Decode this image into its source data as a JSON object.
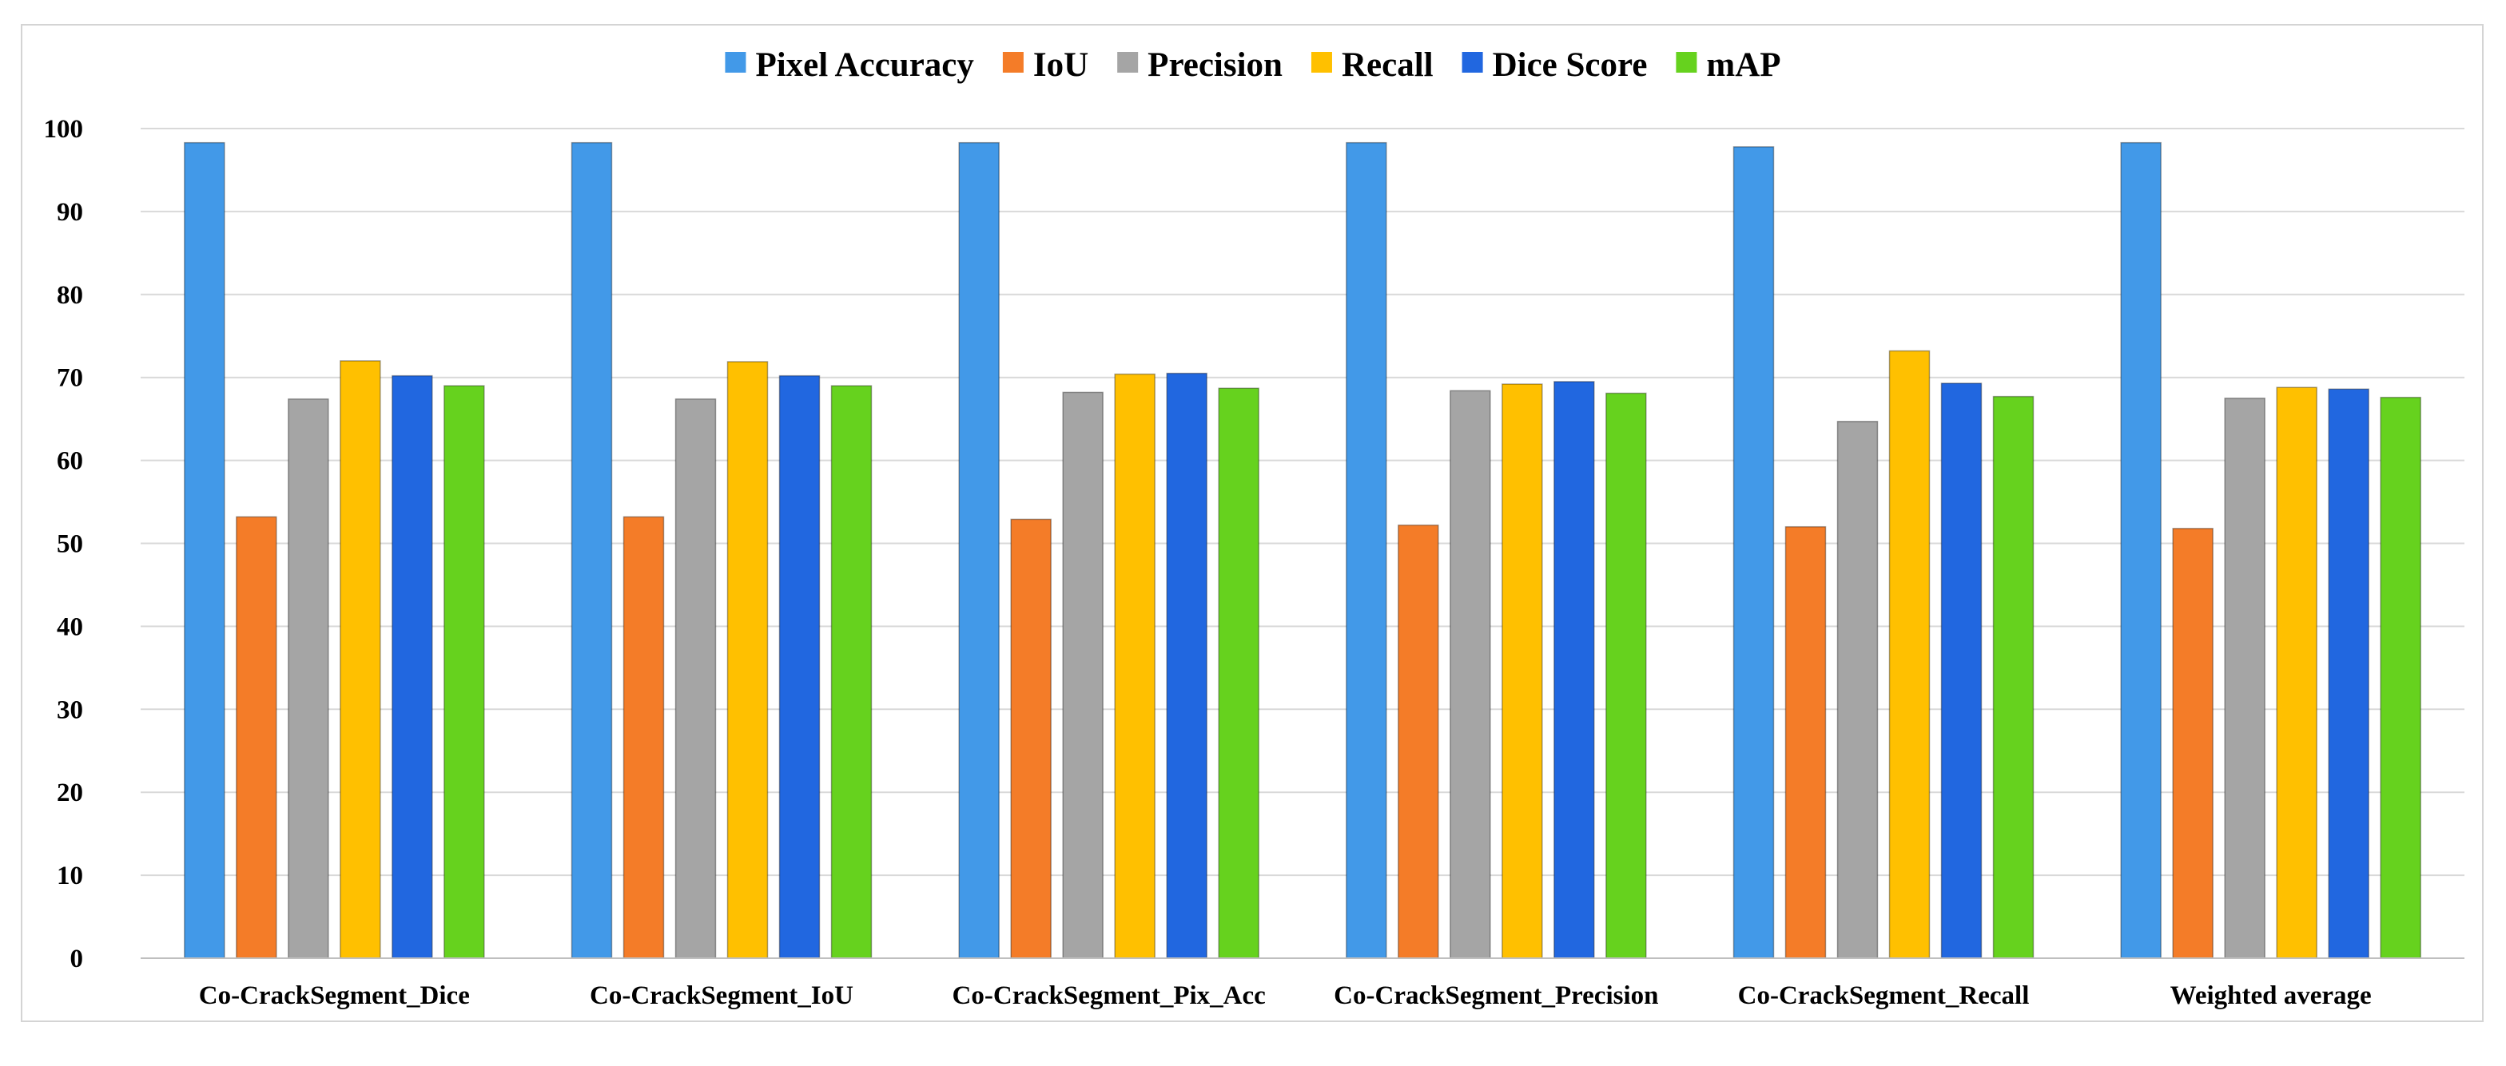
{
  "chart_data": {
    "type": "bar",
    "title": "",
    "xlabel": "",
    "ylabel": "",
    "ylim": [
      0,
      100
    ],
    "yticks": [
      0,
      10,
      20,
      30,
      40,
      50,
      60,
      70,
      80,
      90,
      100
    ],
    "grid": true,
    "legend_position": "top",
    "categories": [
      "Co-CrackSegment_Dice",
      "Co-CrackSegment_IoU",
      "Co-CrackSegment_Pix_Acc",
      "Co-CrackSegment_Precision",
      "Co-CrackSegment_Recall",
      "Weighted average"
    ],
    "series": [
      {
        "name": "Pixel Accuracy",
        "color": "#4299E8",
        "values": [
          98.3,
          98.3,
          98.3,
          98.3,
          97.8,
          98.3
        ]
      },
      {
        "name": "IoU",
        "color": "#F47C28",
        "values": [
          53.2,
          53.2,
          52.9,
          52.2,
          52.0,
          51.8
        ]
      },
      {
        "name": "Precision",
        "color": "#A5A5A5",
        "values": [
          67.4,
          67.4,
          68.2,
          68.4,
          64.7,
          67.5
        ]
      },
      {
        "name": "Recall",
        "color": "#FFC000",
        "values": [
          72.0,
          71.9,
          70.4,
          69.2,
          73.2,
          68.8
        ]
      },
      {
        "name": "Dice Score",
        "color": "#2167E0",
        "values": [
          70.2,
          70.2,
          70.5,
          69.5,
          69.3,
          68.6
        ]
      },
      {
        "name": "mAP",
        "color": "#66D21E",
        "values": [
          69.0,
          69.0,
          68.7,
          68.1,
          67.7,
          67.6
        ]
      }
    ]
  }
}
